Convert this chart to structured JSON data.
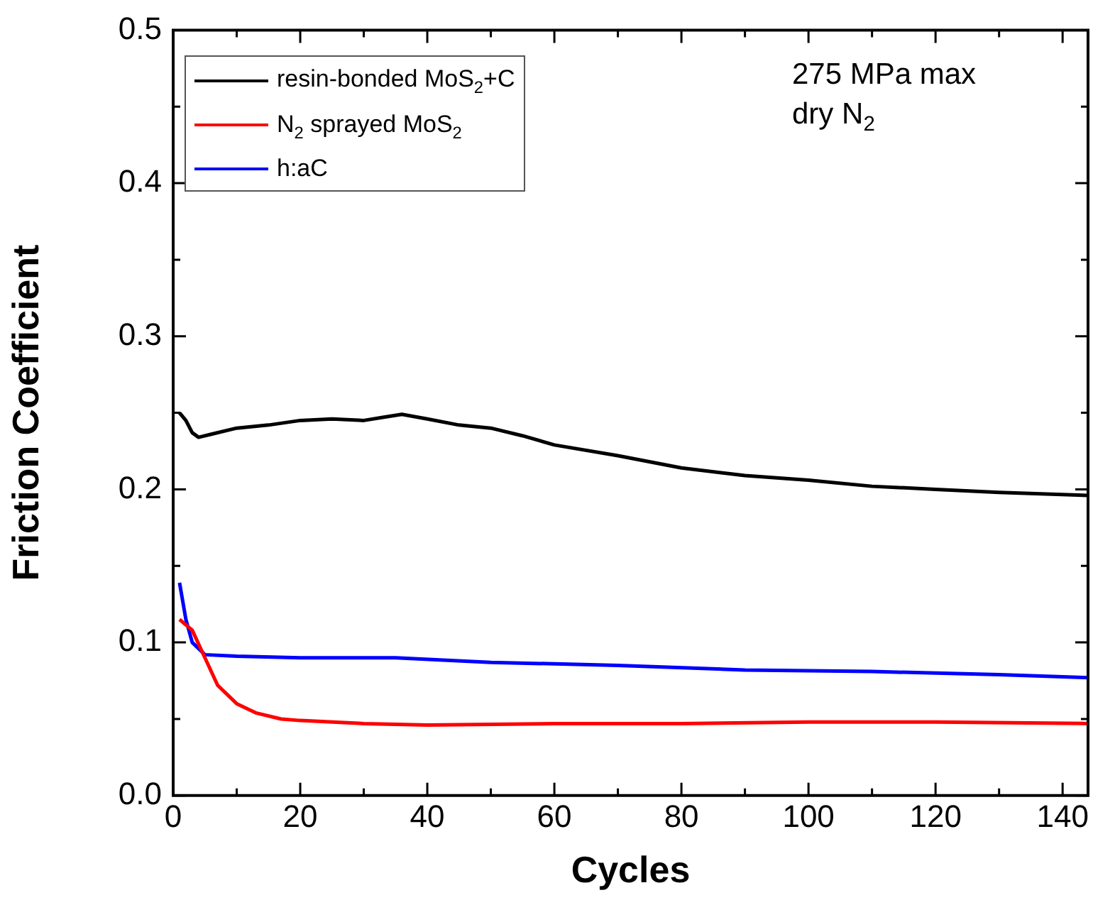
{
  "chart_data": {
    "type": "line",
    "xlabel": "Cycles",
    "ylabel": "Friction Coefficient",
    "annotations": [
      "275 MPa max",
      "dry N$_{2}$"
    ],
    "xlim": [
      0,
      144
    ],
    "xticks": [
      0,
      {
        "value": 10,
        "label": null
      },
      20,
      {
        "value": 30,
        "label": null
      },
      40,
      {
        "value": 50,
        "label": null
      },
      60,
      {
        "value": 70,
        "label": null
      },
      80,
      {
        "value": 90,
        "label": null
      },
      100,
      {
        "value": 110,
        "label": null
      },
      120,
      {
        "value": 130,
        "label": null
      },
      140
    ],
    "ylim": [
      0,
      0.5
    ],
    "yticks": [
      {
        "value": 0,
        "label": "0.0"
      },
      {
        "value": 0.05,
        "label": null
      },
      0.1,
      {
        "value": 0.15,
        "label": null
      },
      0.2,
      {
        "value": 0.25,
        "label": null
      },
      0.3,
      {
        "value": 0.35,
        "label": null
      },
      0.4,
      {
        "value": 0.45,
        "label": null
      },
      0.5
    ],
    "grid": false,
    "legend": "top left",
    "marker": "none",
    "line_style": "solid",
    "series": [
      {
        "name": "resin-bonded MoS$_{2}$+C",
        "color": "#000000",
        "x": [
          1,
          2,
          3,
          4,
          6,
          10,
          15,
          20,
          25,
          30,
          33,
          36,
          40,
          45,
          50,
          55,
          60,
          70,
          80,
          90,
          100,
          110,
          120,
          130,
          144
        ],
        "values": [
          0.25,
          0.245,
          0.237,
          0.234,
          0.236,
          0.24,
          0.242,
          0.245,
          0.246,
          0.245,
          0.247,
          0.249,
          0.246,
          0.242,
          0.24,
          0.235,
          0.229,
          0.222,
          0.214,
          0.209,
          0.206,
          0.202,
          0.2,
          0.198,
          0.196
        ]
      },
      {
        "name": "N$_{2}$ sprayed MoS$_{2}$",
        "color": "#ff0000",
        "x": [
          1,
          3,
          5,
          7,
          10,
          13,
          17,
          20,
          30,
          40,
          60,
          80,
          100,
          120,
          144
        ],
        "values": [
          0.115,
          0.108,
          0.09,
          0.072,
          0.06,
          0.054,
          0.05,
          0.049,
          0.047,
          0.046,
          0.047,
          0.047,
          0.048,
          0.048,
          0.047
        ]
      },
      {
        "name": "h:aC",
        "color": "#0000ff",
        "x": [
          1,
          2,
          3,
          5,
          10,
          20,
          35,
          50,
          70,
          90,
          110,
          130,
          144
        ],
        "values": [
          0.139,
          0.115,
          0.1,
          0.092,
          0.091,
          0.09,
          0.09,
          0.087,
          0.085,
          0.082,
          0.081,
          0.079,
          0.077
        ]
      }
    ]
  }
}
